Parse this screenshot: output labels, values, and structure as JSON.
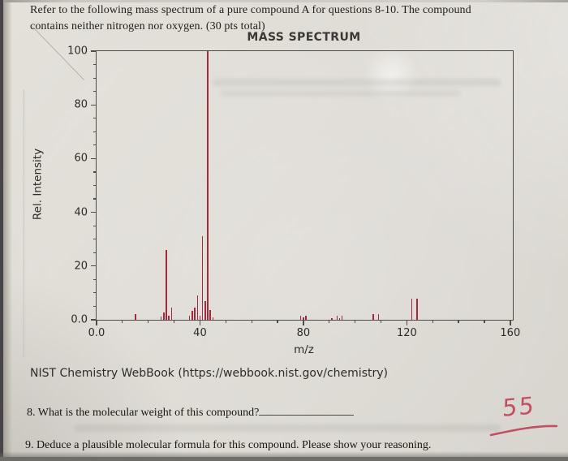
{
  "page": {
    "header_line1": "Refer to the following mass spectrum of a pure compound A for questions 8-10. The compound",
    "header_line2": "contains neither nitrogen nor oxygen. (30 pts total)",
    "source_line": "NIST Chemistry WebBook (https://webbook.nist.gov/chemistry)",
    "question8": "8. What is the molecular weight of this compound?",
    "question9": "9. Deduce a plausible molecular formula for this compound. Please show your reasoning.",
    "handwritten_answer": "55",
    "ink_color": "#c25063"
  },
  "chart_data": {
    "type": "bar",
    "title": "MASS SPECTRUM",
    "xlabel": "m/z",
    "ylabel": "Rel. Intensity",
    "xlim": [
      0,
      161
    ],
    "ylim": [
      0,
      100
    ],
    "x_major_ticks": [
      0,
      40,
      80,
      120,
      160
    ],
    "x_major_labels": [
      "0.0",
      "40",
      "80",
      "120",
      "160"
    ],
    "x_minor_step": 10,
    "y_major_ticks": [
      0,
      20,
      40,
      60,
      80,
      100
    ],
    "y_major_labels": [
      "0.0",
      "20",
      "40",
      "60",
      "80",
      "100"
    ],
    "y_minor_step": 5,
    "bar_color": "#a02b3c",
    "grid": false,
    "legend": null,
    "peaks": [
      {
        "mz": 15,
        "intensity": 2.0
      },
      {
        "mz": 25,
        "intensity": 1.2
      },
      {
        "mz": 26,
        "intensity": 2.6
      },
      {
        "mz": 27,
        "intensity": 26
      },
      {
        "mz": 28,
        "intensity": 1.5
      },
      {
        "mz": 29,
        "intensity": 4.5
      },
      {
        "mz": 36,
        "intensity": 1.6
      },
      {
        "mz": 37,
        "intensity": 3.4
      },
      {
        "mz": 38,
        "intensity": 4.4
      },
      {
        "mz": 39,
        "intensity": 9
      },
      {
        "mz": 40,
        "intensity": 1.6
      },
      {
        "mz": 41,
        "intensity": 31
      },
      {
        "mz": 42,
        "intensity": 7
      },
      {
        "mz": 43,
        "intensity": 100
      },
      {
        "mz": 44,
        "intensity": 3.5
      },
      {
        "mz": 45,
        "intensity": 1.0
      },
      {
        "mz": 79,
        "intensity": 1.6
      },
      {
        "mz": 80,
        "intensity": 0.8
      },
      {
        "mz": 81,
        "intensity": 1.6
      },
      {
        "mz": 91,
        "intensity": 0.7
      },
      {
        "mz": 93,
        "intensity": 1.4
      },
      {
        "mz": 94,
        "intensity": 0.7
      },
      {
        "mz": 95,
        "intensity": 1.4
      },
      {
        "mz": 107,
        "intensity": 2.2
      },
      {
        "mz": 109,
        "intensity": 2.2
      },
      {
        "mz": 122,
        "intensity": 8
      },
      {
        "mz": 124,
        "intensity": 8
      }
    ]
  }
}
